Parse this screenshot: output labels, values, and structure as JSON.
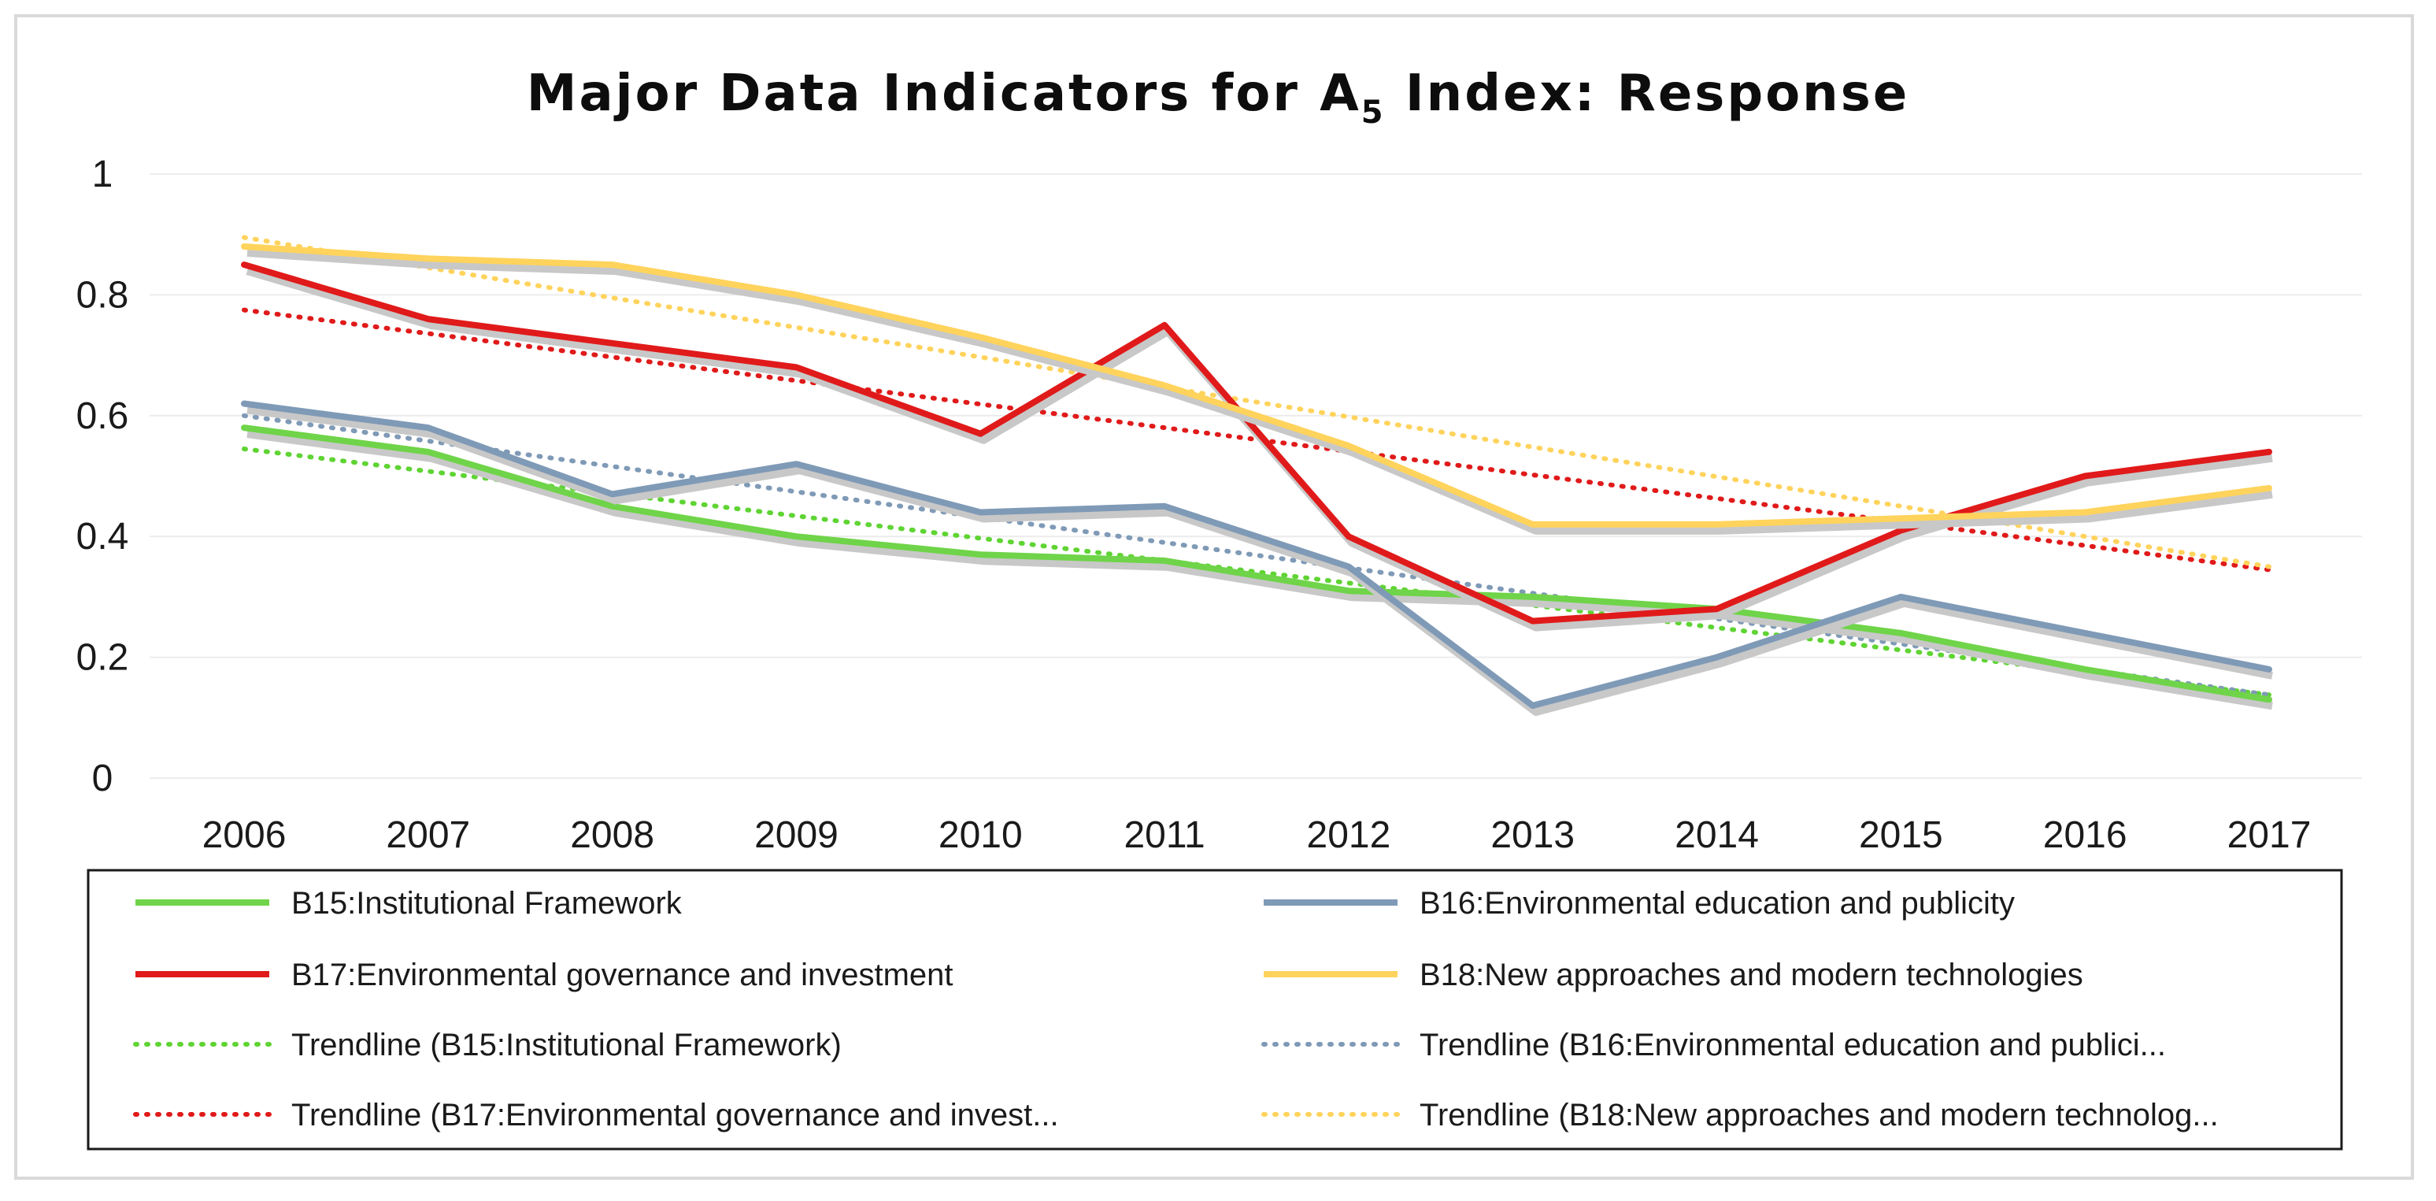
{
  "chart_data": {
    "type": "line",
    "title": "Major Data Indicators for A",
    "title_subscript": "5",
    "title_suffix": " Index: Response",
    "xlabel": "",
    "ylabel": "",
    "categories": [
      "2006",
      "2007",
      "2008",
      "2009",
      "2010",
      "2011",
      "2012",
      "2013",
      "2014",
      "2015",
      "2016",
      "2017"
    ],
    "ylim": [
      0,
      1
    ],
    "y_ticks": [
      0,
      0.2,
      0.4,
      0.6,
      0.8,
      1
    ],
    "y_tick_labels": [
      "0",
      "0.2",
      "0.4",
      "0.6",
      "0.8",
      "1"
    ],
    "grid": true,
    "legend_position": "bottom",
    "series": [
      {
        "name": "B15:Institutional Framework",
        "color": "#6fd449",
        "style": "solid",
        "values": [
          0.58,
          0.54,
          0.45,
          0.4,
          0.37,
          0.36,
          0.31,
          0.3,
          0.28,
          0.24,
          0.18,
          0.13
        ]
      },
      {
        "name": "B16:Environmental education and publicity",
        "color": "#7f9ab6",
        "style": "solid",
        "values": [
          0.62,
          0.58,
          0.47,
          0.52,
          0.44,
          0.45,
          0.35,
          0.12,
          0.2,
          0.3,
          0.24,
          0.18
        ]
      },
      {
        "name": "B17:Environmental governance and investment",
        "color": "#e01a1a",
        "style": "solid",
        "values": [
          0.85,
          0.76,
          0.72,
          0.68,
          0.57,
          0.75,
          0.4,
          0.26,
          0.28,
          0.41,
          0.5,
          0.54
        ]
      },
      {
        "name": "B18:New approaches and modern technologies",
        "color": "#ffd35c",
        "style": "solid",
        "values": [
          0.88,
          0.86,
          0.85,
          0.8,
          0.73,
          0.65,
          0.55,
          0.42,
          0.42,
          0.43,
          0.44,
          0.48
        ]
      },
      {
        "name": "Trendline (B15:Institutional Framework)",
        "color": "#5fd433",
        "style": "dotted",
        "values": [
          0.545,
          0.508,
          0.471,
          0.434,
          0.397,
          0.36,
          0.323,
          0.286,
          0.249,
          0.212,
          0.175,
          0.138
        ]
      },
      {
        "name": "Trendline (B16:Environmental education and publici...",
        "color": "#7f9ab6",
        "style": "dotted",
        "values": [
          0.6,
          0.558,
          0.516,
          0.474,
          0.432,
          0.39,
          0.348,
          0.306,
          0.264,
          0.222,
          0.18,
          0.138
        ]
      },
      {
        "name": "Trendline (B17:Environmental governance and invest...",
        "color": "#e01a1a",
        "style": "dotted",
        "values": [
          0.775,
          0.736,
          0.697,
          0.658,
          0.619,
          0.58,
          0.541,
          0.502,
          0.463,
          0.424,
          0.385,
          0.345
        ]
      },
      {
        "name": "Trendline (B18:New approaches and modern technolog...",
        "color": "#ffd35c",
        "style": "dotted",
        "values": [
          0.895,
          0.845,
          0.795,
          0.746,
          0.697,
          0.647,
          0.598,
          0.548,
          0.499,
          0.45,
          0.4,
          0.35
        ]
      }
    ]
  }
}
